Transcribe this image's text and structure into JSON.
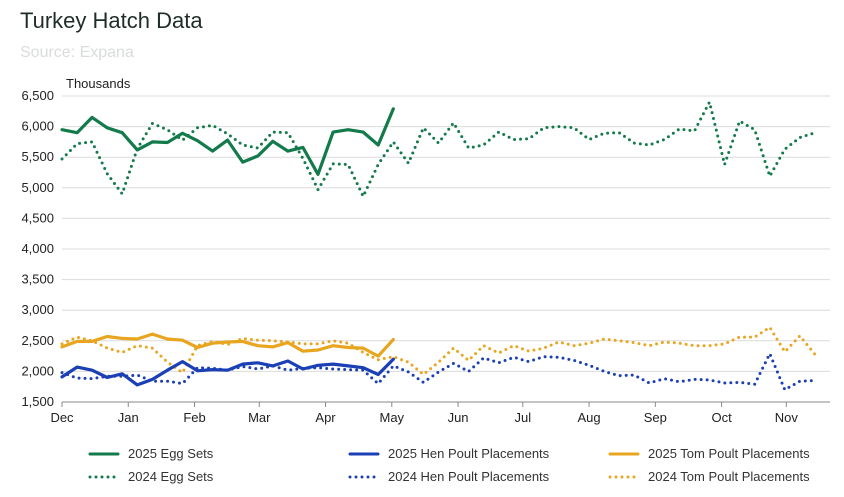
{
  "header": {
    "title": "Turkey Hatch Data",
    "subtitle": "Source: Expana"
  },
  "chart_data": {
    "type": "line",
    "title": "Turkey Hatch Data",
    "ylabel": "Thousands",
    "ylim": [
      1500,
      6500
    ],
    "yticks": [
      1500,
      2000,
      2500,
      3000,
      3500,
      4000,
      4500,
      5000,
      5500,
      6000,
      6500
    ],
    "ytick_labels": [
      "1,500",
      "2,000",
      "2,500",
      "3,000",
      "3,500",
      "4,000",
      "4,500",
      "5,000",
      "5,500",
      "6,000",
      "6,500"
    ],
    "xlim": [
      0,
      51
    ],
    "xticks": [
      0,
      4.4,
      8.8,
      13.1,
      17.5,
      21.9,
      26.3,
      30.6,
      35,
      39.4,
      43.8,
      48.1
    ],
    "xtick_labels": [
      "Dec",
      "Jan",
      "Feb",
      "Mar",
      "Apr",
      "May",
      "Jun",
      "Jul",
      "Aug",
      "Sep",
      "Oct",
      "Nov"
    ],
    "grid": "horizontal",
    "legend_position": "bottom",
    "series": [
      {
        "name": "2025 Egg Sets",
        "color": "#137a4b",
        "style": "solid",
        "x": [
          0,
          1,
          2,
          3,
          4,
          5,
          6,
          7,
          8,
          9,
          10,
          11,
          12,
          13,
          14,
          15,
          16,
          17,
          18,
          19,
          20,
          21,
          22
        ],
        "values": [
          5950,
          5900,
          6150,
          5980,
          5900,
          5620,
          5750,
          5740,
          5890,
          5770,
          5600,
          5780,
          5420,
          5520,
          5760,
          5600,
          5660,
          5220,
          5910,
          5950,
          5910,
          5700,
          6290
        ]
      },
      {
        "name": "2024 Egg Sets",
        "color": "#137a4b",
        "style": "dotted",
        "x": [
          0,
          1,
          2,
          3,
          4,
          5,
          6,
          7,
          8,
          9,
          10,
          11,
          12,
          13,
          14,
          15,
          16,
          17,
          18,
          19,
          20,
          21,
          22,
          23,
          24,
          25,
          26,
          27,
          28,
          29,
          30,
          31,
          32,
          33,
          34,
          35,
          36,
          37,
          38,
          39,
          40,
          41,
          42,
          43,
          44,
          45,
          46,
          47,
          48,
          49,
          50
        ],
        "values": [
          5470,
          5720,
          5750,
          5230,
          4900,
          5640,
          6050,
          5950,
          5780,
          5980,
          6020,
          5880,
          5700,
          5650,
          5910,
          5900,
          5480,
          4970,
          5390,
          5380,
          4860,
          5380,
          5750,
          5400,
          5980,
          5730,
          6060,
          5650,
          5700,
          5910,
          5790,
          5800,
          5980,
          6000,
          5980,
          5790,
          5890,
          5900,
          5730,
          5700,
          5790,
          5960,
          5930,
          6400,
          5380,
          6090,
          5950,
          5190,
          5630,
          5820,
          5900
        ]
      },
      {
        "name": "2025 Hen Poult Placements",
        "color": "#1b3fb5",
        "style": "solid",
        "x": [
          0,
          1,
          2,
          3,
          4,
          5,
          6,
          7,
          8,
          9,
          10,
          11,
          12,
          13,
          14,
          15,
          16,
          17,
          18,
          19,
          20,
          21,
          22
        ],
        "values": [
          1910,
          2070,
          2020,
          1900,
          1960,
          1780,
          1870,
          2020,
          2160,
          2010,
          2030,
          2020,
          2120,
          2140,
          2090,
          2170,
          2040,
          2100,
          2120,
          2090,
          2060,
          1950,
          2200
        ]
      },
      {
        "name": "2024 Hen Poult Placements",
        "color": "#1b3fb5",
        "style": "dotted",
        "x": [
          0,
          1,
          2,
          3,
          4,
          5,
          6,
          7,
          8,
          9,
          10,
          11,
          12,
          13,
          14,
          15,
          16,
          17,
          18,
          19,
          20,
          21,
          22,
          23,
          24,
          25,
          26,
          27,
          28,
          29,
          30,
          31,
          32,
          33,
          34,
          35,
          36,
          37,
          38,
          39,
          40,
          41,
          42,
          43,
          44,
          45,
          46,
          47,
          48,
          49,
          50
        ],
        "values": [
          1980,
          1890,
          1880,
          1920,
          1920,
          1940,
          1840,
          1840,
          1800,
          2060,
          2050,
          2020,
          2080,
          2040,
          2090,
          2020,
          2050,
          2060,
          2040,
          2030,
          2020,
          1800,
          2090,
          1990,
          1820,
          1990,
          2130,
          2000,
          2220,
          2140,
          2230,
          2160,
          2240,
          2230,
          2180,
          2100,
          2000,
          1930,
          1940,
          1810,
          1880,
          1830,
          1870,
          1860,
          1810,
          1820,
          1790,
          2290,
          1700,
          1840,
          1850
        ]
      },
      {
        "name": "2025 Tom Poult Placements",
        "color": "#e8a51f",
        "style": "solid",
        "x": [
          0,
          1,
          2,
          3,
          4,
          5,
          6,
          7,
          8,
          9,
          10,
          11,
          12,
          13,
          14,
          15,
          16,
          17,
          18,
          19,
          20,
          21,
          22
        ],
        "values": [
          2400,
          2490,
          2490,
          2570,
          2540,
          2530,
          2610,
          2530,
          2510,
          2390,
          2460,
          2480,
          2490,
          2420,
          2400,
          2470,
          2330,
          2350,
          2420,
          2390,
          2380,
          2250,
          2520
        ]
      },
      {
        "name": "2024 Tom Poult Placements",
        "color": "#e8a51f",
        "style": "dotted",
        "x": [
          0,
          1,
          2,
          3,
          4,
          5,
          6,
          7,
          8,
          9,
          10,
          11,
          12,
          13,
          14,
          15,
          16,
          17,
          18,
          19,
          20,
          21,
          22,
          23,
          24,
          25,
          26,
          27,
          28,
          29,
          30,
          31,
          32,
          33,
          34,
          35,
          36,
          37,
          38,
          39,
          40,
          41,
          42,
          43,
          44,
          45,
          46,
          47,
          48,
          49,
          50
        ],
        "values": [
          2450,
          2560,
          2500,
          2380,
          2310,
          2420,
          2380,
          2150,
          1980,
          2420,
          2490,
          2440,
          2540,
          2510,
          2500,
          2480,
          2450,
          2450,
          2500,
          2460,
          2310,
          2190,
          2240,
          2150,
          1950,
          2150,
          2380,
          2180,
          2420,
          2300,
          2420,
          2330,
          2380,
          2480,
          2420,
          2460,
          2530,
          2500,
          2470,
          2420,
          2480,
          2460,
          2420,
          2420,
          2450,
          2560,
          2560,
          2720,
          2320,
          2580,
          2280
        ]
      }
    ]
  }
}
